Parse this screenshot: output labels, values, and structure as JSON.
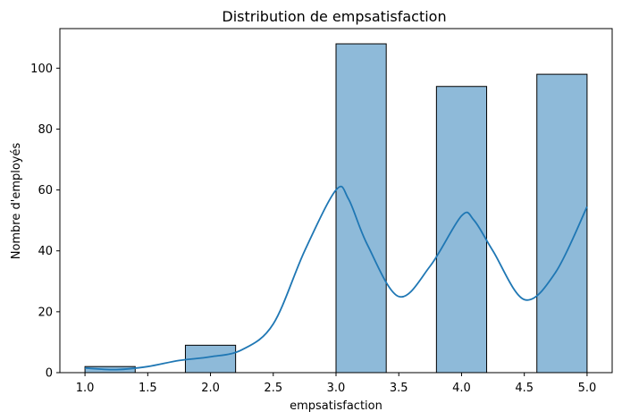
{
  "chart_data": {
    "type": "bar",
    "title": "Distribution de empsatisfaction",
    "xlabel": "empsatisfaction",
    "ylabel": "Nombre d'employés",
    "bins": [
      {
        "x0": 1.0,
        "x1": 1.4,
        "count": 2
      },
      {
        "x0": 1.4,
        "x1": 1.8,
        "count": 0
      },
      {
        "x0": 1.8,
        "x1": 2.2,
        "count": 9
      },
      {
        "x0": 2.2,
        "x1": 2.6,
        "count": 0
      },
      {
        "x0": 2.6,
        "x1": 3.0,
        "count": 0
      },
      {
        "x0": 3.0,
        "x1": 3.4,
        "count": 108
      },
      {
        "x0": 3.4,
        "x1": 3.8,
        "count": 0
      },
      {
        "x0": 3.8,
        "x1": 4.2,
        "count": 94
      },
      {
        "x0": 4.2,
        "x1": 4.6,
        "count": 0
      },
      {
        "x0": 4.6,
        "x1": 5.0,
        "count": 98
      }
    ],
    "kde": {
      "x": [
        1.0,
        1.25,
        1.5,
        1.75,
        2.0,
        2.25,
        2.5,
        2.75,
        3.0,
        3.1,
        3.25,
        3.5,
        3.75,
        4.0,
        4.1,
        4.25,
        4.5,
        4.75,
        5.0
      ],
      "y": [
        1.5,
        1.0,
        2.0,
        4.0,
        5.2,
        7.5,
        16.0,
        40.0,
        60.0,
        57.0,
        42.0,
        25.0,
        35.0,
        51.5,
        50.0,
        40.0,
        24.0,
        33.0,
        54.5
      ]
    },
    "xlim": [
      0.8,
      5.2
    ],
    "ylim": [
      0,
      113
    ],
    "xticks": [
      "1.0",
      "1.5",
      "2.0",
      "2.5",
      "3.0",
      "3.5",
      "4.0",
      "4.5",
      "5.0"
    ],
    "yticks": [
      "0",
      "20",
      "40",
      "60",
      "80",
      "100"
    ],
    "colors": {
      "bar_fill": "#8ebad9",
      "bar_edge": "#000000",
      "kde_line": "#1f77b4"
    },
    "grid": false,
    "legend": "none"
  }
}
